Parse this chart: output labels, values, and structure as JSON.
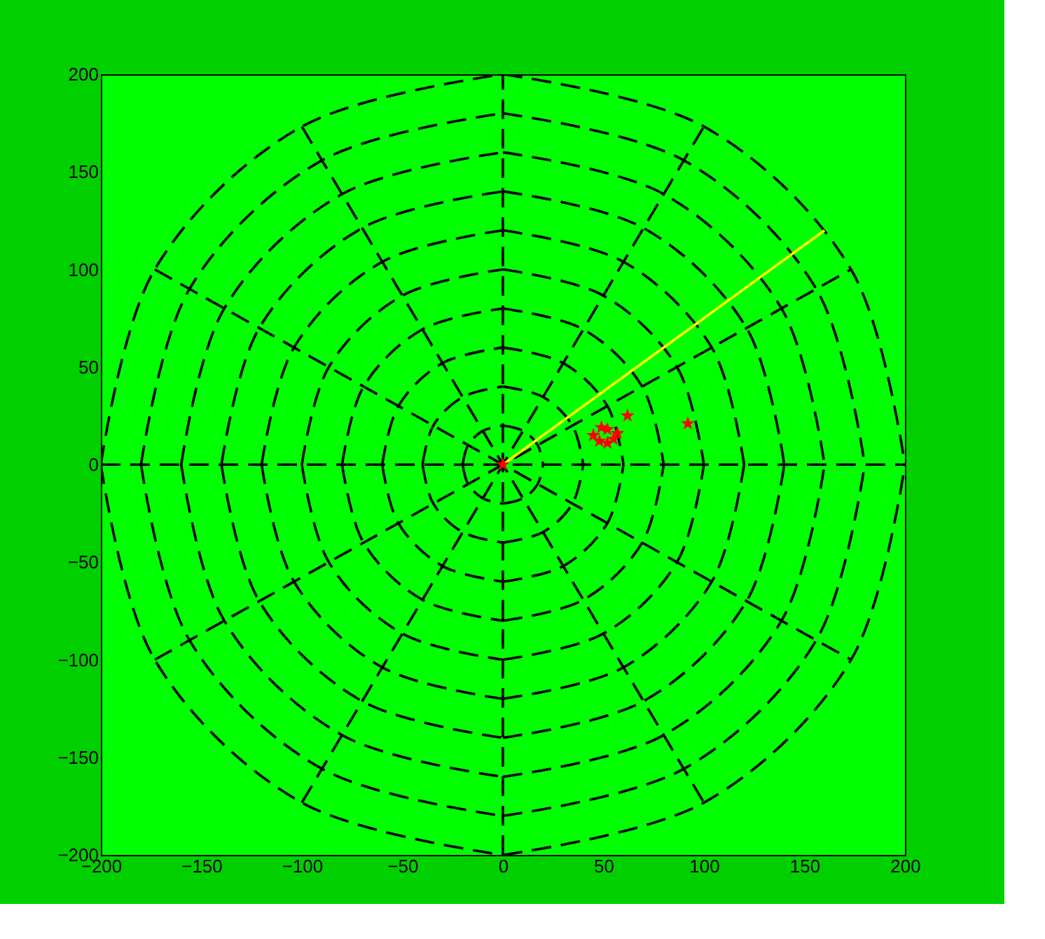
{
  "chart_data": {
    "type": "scatter",
    "xlim": [
      -200,
      200
    ],
    "ylim": [
      -200,
      200
    ],
    "xticks": [
      -200,
      -150,
      -100,
      -50,
      0,
      50,
      100,
      150,
      200
    ],
    "yticks": [
      -200,
      -150,
      -100,
      -50,
      0,
      50,
      100,
      150,
      200
    ],
    "grid": false,
    "series": [
      {
        "type": "line",
        "color": "#000000",
        "line_style": "dashed",
        "x": [
          -20,
          -17.3,
          -10,
          0
        ],
        "values": [
          0,
          10,
          17.3,
          20
        ]
      },
      {
        "type": "line",
        "color": "#000000",
        "line_style": "dashed",
        "x": [
          0,
          10,
          17.3,
          20
        ],
        "values": [
          20,
          17.3,
          10,
          0
        ]
      },
      {
        "type": "line",
        "color": "#000000",
        "line_style": "dashed",
        "x": [
          -20,
          -17.3,
          -10,
          0
        ],
        "values": [
          0,
          -10,
          -17.3,
          -20
        ]
      },
      {
        "type": "line",
        "color": "#000000",
        "line_style": "dashed",
        "x": [
          0,
          10,
          17.3,
          20
        ],
        "values": [
          -20,
          -17.3,
          -10,
          0
        ]
      },
      {
        "type": "line",
        "color": "#000000",
        "line_style": "dashed",
        "x": [
          -40,
          -34.6,
          -20,
          0
        ],
        "values": [
          0,
          20,
          34.6,
          40
        ]
      },
      {
        "type": "line",
        "color": "#000000",
        "line_style": "dashed",
        "x": [
          0,
          20,
          34.6,
          40
        ],
        "values": [
          40,
          34.6,
          20,
          0
        ]
      },
      {
        "type": "line",
        "color": "#000000",
        "line_style": "dashed",
        "x": [
          -40,
          -34.6,
          -20,
          0
        ],
        "values": [
          0,
          -20,
          -34.6,
          -40
        ]
      },
      {
        "type": "line",
        "color": "#000000",
        "line_style": "dashed",
        "x": [
          0,
          20,
          34.6,
          40
        ],
        "values": [
          -40,
          -34.6,
          -20,
          0
        ]
      },
      {
        "type": "line",
        "color": "#000000",
        "line_style": "dashed",
        "x": [
          -60,
          -52,
          -30,
          0
        ],
        "values": [
          0,
          30,
          52,
          60
        ]
      },
      {
        "type": "line",
        "color": "#000000",
        "line_style": "dashed",
        "x": [
          0,
          30,
          52,
          60
        ],
        "values": [
          60,
          52,
          30,
          0
        ]
      },
      {
        "type": "line",
        "color": "#000000",
        "line_style": "dashed",
        "x": [
          -60,
          -52,
          -30,
          0
        ],
        "values": [
          0,
          -30,
          -52,
          -60
        ]
      },
      {
        "type": "line",
        "color": "#000000",
        "line_style": "dashed",
        "x": [
          0,
          30,
          52,
          60
        ],
        "values": [
          -60,
          -52,
          -30,
          0
        ]
      },
      {
        "type": "line",
        "color": "#000000",
        "line_style": "dashed",
        "x": [
          -80,
          -69.3,
          -40,
          0
        ],
        "values": [
          0,
          40,
          69.3,
          80
        ]
      },
      {
        "type": "line",
        "color": "#000000",
        "line_style": "dashed",
        "x": [
          0,
          40,
          69.3,
          80
        ],
        "values": [
          80,
          69.3,
          40,
          0
        ]
      },
      {
        "type": "line",
        "color": "#000000",
        "line_style": "dashed",
        "x": [
          -80,
          -69.3,
          -40,
          0
        ],
        "values": [
          0,
          -40,
          -69.3,
          -80
        ]
      },
      {
        "type": "line",
        "color": "#000000",
        "line_style": "dashed",
        "x": [
          0,
          40,
          69.3,
          80
        ],
        "values": [
          -80,
          -69.3,
          -40,
          0
        ]
      },
      {
        "type": "line",
        "color": "#000000",
        "line_style": "dashed",
        "x": [
          -100,
          -86.6,
          -50,
          0
        ],
        "values": [
          0,
          50,
          86.6,
          100
        ]
      },
      {
        "type": "line",
        "color": "#000000",
        "line_style": "dashed",
        "x": [
          0,
          50,
          86.6,
          100
        ],
        "values": [
          100,
          86.6,
          50,
          0
        ]
      },
      {
        "type": "line",
        "color": "#000000",
        "line_style": "dashed",
        "x": [
          -100,
          -86.6,
          -50,
          0
        ],
        "values": [
          0,
          -50,
          -86.6,
          -100
        ]
      },
      {
        "type": "line",
        "color": "#000000",
        "line_style": "dashed",
        "x": [
          0,
          50,
          86.6,
          100
        ],
        "values": [
          -100,
          -86.6,
          -50,
          0
        ]
      },
      {
        "type": "line",
        "color": "#000000",
        "line_style": "dashed",
        "x": [
          -120,
          -103.9,
          -60,
          0
        ],
        "values": [
          0,
          60,
          103.9,
          120
        ]
      },
      {
        "type": "line",
        "color": "#000000",
        "line_style": "dashed",
        "x": [
          0,
          60,
          103.9,
          120
        ],
        "values": [
          120,
          103.9,
          60,
          0
        ]
      },
      {
        "type": "line",
        "color": "#000000",
        "line_style": "dashed",
        "x": [
          -120,
          -103.9,
          -60,
          0
        ],
        "values": [
          0,
          -60,
          -103.9,
          -120
        ]
      },
      {
        "type": "line",
        "color": "#000000",
        "line_style": "dashed",
        "x": [
          0,
          60,
          103.9,
          120
        ],
        "values": [
          -120,
          -103.9,
          -60,
          0
        ]
      },
      {
        "type": "line",
        "color": "#000000",
        "line_style": "dashed",
        "x": [
          -140,
          -121.2,
          -70,
          0
        ],
        "values": [
          0,
          70,
          121.2,
          140
        ]
      },
      {
        "type": "line",
        "color": "#000000",
        "line_style": "dashed",
        "x": [
          0,
          70,
          121.2,
          140
        ],
        "values": [
          140,
          121.2,
          70,
          0
        ]
      },
      {
        "type": "line",
        "color": "#000000",
        "line_style": "dashed",
        "x": [
          -140,
          -121.2,
          -70,
          0
        ],
        "values": [
          0,
          -70,
          -121.2,
          -140
        ]
      },
      {
        "type": "line",
        "color": "#000000",
        "line_style": "dashed",
        "x": [
          0,
          70,
          121.2,
          140
        ],
        "values": [
          -140,
          -121.2,
          -70,
          0
        ]
      },
      {
        "type": "line",
        "color": "#000000",
        "line_style": "dashed",
        "x": [
          -160,
          -138.6,
          -80,
          0
        ],
        "values": [
          0,
          80,
          138.6,
          160
        ]
      },
      {
        "type": "line",
        "color": "#000000",
        "line_style": "dashed",
        "x": [
          0,
          80,
          138.6,
          160
        ],
        "values": [
          160,
          138.6,
          80,
          0
        ]
      },
      {
        "type": "line",
        "color": "#000000",
        "line_style": "dashed",
        "x": [
          -160,
          -138.6,
          -80,
          0
        ],
        "values": [
          0,
          -80,
          -138.6,
          -160
        ]
      },
      {
        "type": "line",
        "color": "#000000",
        "line_style": "dashed",
        "x": [
          0,
          80,
          138.6,
          160
        ],
        "values": [
          -160,
          -138.6,
          -80,
          0
        ]
      },
      {
        "type": "line",
        "color": "#000000",
        "line_style": "dashed",
        "x": [
          -180,
          -155.9,
          -90,
          0
        ],
        "values": [
          0,
          90,
          155.9,
          180
        ]
      },
      {
        "type": "line",
        "color": "#000000",
        "line_style": "dashed",
        "x": [
          0,
          90,
          155.9,
          180
        ],
        "values": [
          180,
          155.9,
          90,
          0
        ]
      },
      {
        "type": "line",
        "color": "#000000",
        "line_style": "dashed",
        "x": [
          -180,
          -155.9,
          -90,
          0
        ],
        "values": [
          0,
          -90,
          -155.9,
          -180
        ]
      },
      {
        "type": "line",
        "color": "#000000",
        "line_style": "dashed",
        "x": [
          0,
          90,
          155.9,
          180
        ],
        "values": [
          -180,
          -155.9,
          -90,
          0
        ]
      },
      {
        "type": "line",
        "color": "#000000",
        "line_style": "dashed",
        "x": [
          -200,
          -173.2,
          -100,
          0
        ],
        "values": [
          0,
          100,
          173.2,
          200
        ]
      },
      {
        "type": "line",
        "color": "#000000",
        "line_style": "dashed",
        "x": [
          0,
          100,
          173.2,
          200
        ],
        "values": [
          200,
          173.2,
          100,
          0
        ]
      },
      {
        "type": "line",
        "color": "#000000",
        "line_style": "dashed",
        "x": [
          -200,
          -173.2,
          -100,
          0
        ],
        "values": [
          0,
          -100,
          -173.2,
          -200
        ]
      },
      {
        "type": "line",
        "color": "#000000",
        "line_style": "dashed",
        "x": [
          0,
          100,
          173.2,
          200
        ],
        "values": [
          -200,
          -173.2,
          -100,
          0
        ]
      },
      {
        "type": "line",
        "color": "#000000",
        "line_style": "dashed",
        "x": [
          -200,
          200
        ],
        "values": [
          0,
          0
        ]
      },
      {
        "type": "line",
        "color": "#000000",
        "line_style": "dashed",
        "x": [
          -173.2,
          173.2
        ],
        "values": [
          -100,
          100
        ]
      },
      {
        "type": "line",
        "color": "#000000",
        "line_style": "dashed",
        "x": [
          -100,
          100
        ],
        "values": [
          -173.2,
          173.2
        ]
      },
      {
        "type": "line",
        "color": "#000000",
        "line_style": "dashed",
        "x": [
          0,
          0
        ],
        "values": [
          -200,
          200
        ]
      },
      {
        "type": "line",
        "color": "#000000",
        "line_style": "dashed",
        "x": [
          -100,
          100
        ],
        "values": [
          173.2,
          -173.2
        ]
      },
      {
        "type": "line",
        "color": "#000000",
        "line_style": "dashed",
        "x": [
          -173.2,
          173.2
        ],
        "values": [
          100,
          -100
        ]
      },
      {
        "type": "line",
        "color": "#ffff00",
        "line_style": "solid",
        "x": [
          0,
          160
        ],
        "values": [
          0,
          120
        ]
      },
      {
        "color": "#ff0000",
        "marker": "star",
        "x": [
          0,
          45,
          49,
          52,
          55,
          48,
          52,
          57,
          62,
          92
        ],
        "values": [
          0,
          15,
          19,
          18,
          13,
          12,
          11,
          16,
          25,
          21
        ]
      }
    ]
  }
}
